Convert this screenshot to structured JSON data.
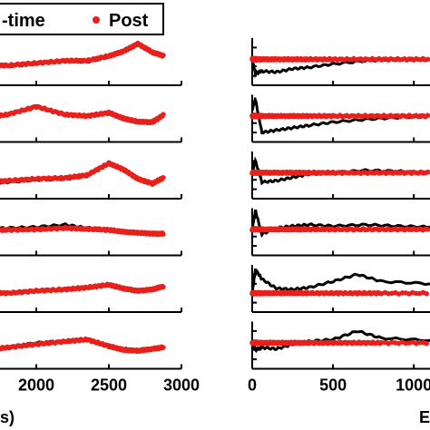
{
  "legend": {
    "items": [
      {
        "label": "-time",
        "color": "#000000",
        "marker": "line"
      },
      {
        "label": "Post",
        "color": "#e8201c",
        "marker": "dot"
      }
    ]
  },
  "axis_labels": {
    "left_x": "s)",
    "right_x": "E"
  },
  "chart_data": [
    {
      "type": "line",
      "title": "",
      "xlabel": "s)",
      "ylabel": "",
      "xlim": [
        1500,
        3000
      ],
      "xticks": [
        "2000",
        "2500",
        "3000"
      ],
      "series_names": [
        "-time",
        "Post"
      ],
      "series_colors": [
        "#000000",
        "#e8201c"
      ],
      "panels": [
        {
          "x": [
            1500,
            1650,
            1800,
            2000,
            2200,
            2350,
            2500,
            2600,
            2700,
            2800,
            2880
          ],
          "black": [
            0.42,
            0.45,
            0.4,
            0.46,
            0.52,
            0.5,
            0.6,
            0.7,
            0.88,
            0.7,
            0.62
          ],
          "red": [
            0.4,
            0.44,
            0.42,
            0.47,
            0.52,
            0.52,
            0.62,
            0.72,
            0.88,
            0.7,
            0.62
          ]
        },
        {
          "x": [
            1500,
            1650,
            1800,
            2000,
            2200,
            2350,
            2500,
            2600,
            2700,
            2800,
            2880
          ],
          "black": [
            0.45,
            0.52,
            0.58,
            0.75,
            0.58,
            0.55,
            0.62,
            0.48,
            0.42,
            0.4,
            0.58
          ],
          "red": [
            0.44,
            0.52,
            0.58,
            0.75,
            0.58,
            0.55,
            0.62,
            0.5,
            0.43,
            0.42,
            0.58
          ]
        },
        {
          "x": [
            1500,
            1650,
            1800,
            2000,
            2200,
            2350,
            2500,
            2600,
            2700,
            2800,
            2880
          ],
          "black": [
            0.3,
            0.32,
            0.35,
            0.4,
            0.42,
            0.48,
            0.75,
            0.62,
            0.42,
            0.32,
            0.45
          ],
          "red": [
            0.32,
            0.34,
            0.38,
            0.42,
            0.44,
            0.5,
            0.75,
            0.62,
            0.42,
            0.32,
            0.45
          ]
        },
        {
          "x": [
            1500,
            1650,
            1800,
            2000,
            2200,
            2350,
            2500,
            2600,
            2700,
            2800,
            2880
          ],
          "black": [
            0.55,
            0.56,
            0.58,
            0.6,
            0.65,
            0.58,
            0.55,
            0.5,
            0.48,
            0.45,
            0.46
          ],
          "red": [
            0.52,
            0.53,
            0.54,
            0.55,
            0.58,
            0.56,
            0.54,
            0.5,
            0.48,
            0.46,
            0.46
          ]
        },
        {
          "x": [
            1500,
            1650,
            1800,
            2000,
            2200,
            2350,
            2500,
            2600,
            2700,
            2800,
            2880
          ],
          "black": [
            0.4,
            0.42,
            0.4,
            0.45,
            0.48,
            0.52,
            0.58,
            0.5,
            0.45,
            0.48,
            0.55
          ],
          "red": [
            0.4,
            0.42,
            0.4,
            0.45,
            0.48,
            0.52,
            0.58,
            0.5,
            0.45,
            0.48,
            0.55
          ]
        },
        {
          "x": [
            1500,
            1650,
            1800,
            2000,
            2200,
            2350,
            2500,
            2600,
            2700,
            2800,
            2880
          ],
          "black": [
            0.38,
            0.4,
            0.45,
            0.55,
            0.58,
            0.62,
            0.48,
            0.42,
            0.4,
            0.42,
            0.46
          ],
          "red": [
            0.38,
            0.4,
            0.45,
            0.52,
            0.58,
            0.62,
            0.48,
            0.4,
            0.38,
            0.42,
            0.46
          ]
        }
      ]
    },
    {
      "type": "line",
      "title": "",
      "xlabel": "E",
      "ylabel": "",
      "xlim": [
        0,
        1100
      ],
      "xticks": [
        "0",
        "500",
        "1000"
      ],
      "series_names": [
        "-time",
        "Post"
      ],
      "series_colors": [
        "#000000",
        "#e8201c"
      ],
      "panels": [
        {
          "x": [
            0,
            20,
            60,
            150,
            250,
            350,
            500,
            700,
            900,
            1100
          ],
          "black": [
            0.55,
            0.25,
            0.3,
            0.28,
            0.35,
            0.38,
            0.45,
            0.52,
            0.55,
            0.55
          ],
          "red": [
            0.55,
            0.55,
            0.55,
            0.55,
            0.55,
            0.55,
            0.55,
            0.55,
            0.55,
            0.55
          ]
        },
        {
          "x": [
            0,
            20,
            60,
            150,
            250,
            350,
            500,
            700,
            900,
            1100
          ],
          "black": [
            0.7,
            0.9,
            0.2,
            0.25,
            0.3,
            0.35,
            0.42,
            0.48,
            0.52,
            0.55
          ],
          "red": [
            0.55,
            0.55,
            0.55,
            0.55,
            0.55,
            0.55,
            0.55,
            0.55,
            0.55,
            0.55
          ]
        },
        {
          "x": [
            0,
            20,
            60,
            150,
            250,
            350,
            500,
            700,
            900,
            1100
          ],
          "black": [
            0.6,
            0.8,
            0.35,
            0.38,
            0.45,
            0.52,
            0.55,
            0.6,
            0.58,
            0.55
          ],
          "red": [
            0.55,
            0.55,
            0.55,
            0.55,
            0.55,
            0.55,
            0.55,
            0.55,
            0.55,
            0.55
          ]
        },
        {
          "x": [
            0,
            20,
            60,
            150,
            250,
            350,
            500,
            700,
            900,
            1100
          ],
          "black": [
            0.55,
            0.95,
            0.45,
            0.58,
            0.62,
            0.65,
            0.62,
            0.65,
            0.62,
            0.6
          ],
          "red": [
            0.55,
            0.55,
            0.55,
            0.55,
            0.55,
            0.55,
            0.55,
            0.55,
            0.55,
            0.55
          ]
        },
        {
          "x": [
            0,
            20,
            60,
            150,
            250,
            350,
            500,
            650,
            800,
            1100
          ],
          "black": [
            0.4,
            0.9,
            0.7,
            0.5,
            0.48,
            0.52,
            0.65,
            0.8,
            0.65,
            0.6
          ],
          "red": [
            0.4,
            0.4,
            0.4,
            0.4,
            0.4,
            0.4,
            0.4,
            0.4,
            0.4,
            0.4
          ]
        },
        {
          "x": [
            0,
            20,
            60,
            150,
            250,
            350,
            500,
            650,
            800,
            1100
          ],
          "black": [
            0.55,
            0.4,
            0.45,
            0.42,
            0.52,
            0.58,
            0.62,
            0.8,
            0.65,
            0.6
          ],
          "red": [
            0.55,
            0.55,
            0.55,
            0.55,
            0.55,
            0.55,
            0.55,
            0.55,
            0.55,
            0.55
          ]
        }
      ]
    }
  ]
}
